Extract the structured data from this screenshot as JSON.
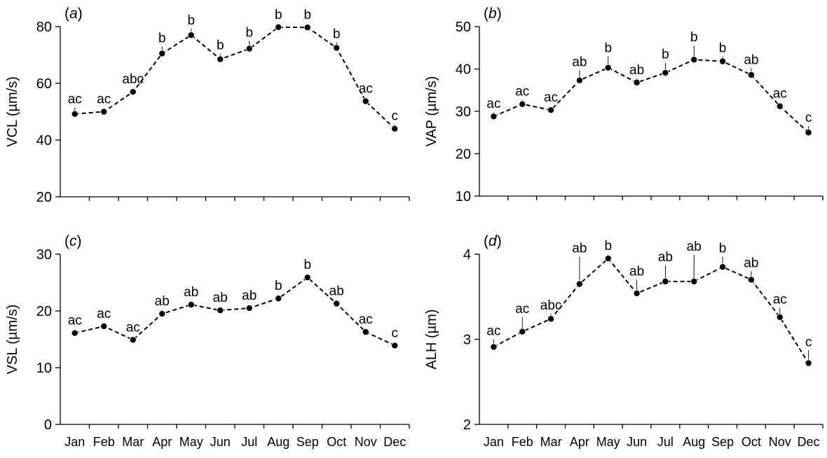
{
  "chart_data": [
    {
      "type": "line",
      "panel_label": "a",
      "ylabel": "VCL (µm/s)",
      "xlabel": "",
      "ylim": [
        20,
        80
      ],
      "yticks": [
        20,
        40,
        60,
        80
      ],
      "categories": [
        "Jan",
        "Feb",
        "Mar",
        "Apr",
        "May",
        "Jun",
        "Jul",
        "Aug",
        "Sep",
        "Oct",
        "Nov",
        "Dec"
      ],
      "series": [
        {
          "values": [
            49.2,
            50.0,
            57.0,
            70.5,
            77.0,
            68.5,
            72.2,
            79.8,
            79.7,
            72.5,
            53.7,
            44.0
          ],
          "error_upper": [
            51.5,
            50.5,
            57.5,
            73.0,
            79.3,
            70.5,
            75.0,
            80.5,
            80.5,
            74.5,
            54.7,
            45.5
          ],
          "annotations": [
            "ac",
            "ac",
            "abc",
            "b",
            "b",
            "b",
            "b",
            "b",
            "b",
            "b",
            "ac",
            "c"
          ]
        }
      ],
      "show_xticklabels": false
    },
    {
      "type": "line",
      "panel_label": "b",
      "ylabel": "VAP (µm/s)",
      "xlabel": "",
      "ylim": [
        10,
        50
      ],
      "yticks": [
        10,
        20,
        30,
        40,
        50
      ],
      "categories": [
        "Jan",
        "Feb",
        "Mar",
        "Apr",
        "May",
        "Jun",
        "Jul",
        "Aug",
        "Sep",
        "Oct",
        "Nov",
        "Dec"
      ],
      "series": [
        {
          "values": [
            28.8,
            31.7,
            30.3,
            37.3,
            40.3,
            36.8,
            39.1,
            42.2,
            41.8,
            38.6,
            31.2,
            25.0
          ],
          "error_upper": [
            29.8,
            32.7,
            30.6,
            39.7,
            43.0,
            37.8,
            41.5,
            45.5,
            43.0,
            40.2,
            31.8,
            26.5
          ],
          "annotations": [
            "ac",
            "ac",
            "ac",
            "ab",
            "b",
            "ab",
            "b",
            "b",
            "b",
            "ab",
            "ac",
            "c"
          ]
        }
      ],
      "show_xticklabels": false
    },
    {
      "type": "line",
      "panel_label": "c",
      "ylabel": "VSL (µm/s)",
      "xlabel": "",
      "ylim": [
        0,
        30
      ],
      "yticks": [
        0,
        10,
        20,
        30
      ],
      "categories": [
        "Jan",
        "Feb",
        "Mar",
        "Apr",
        "May",
        "Jun",
        "Jul",
        "Aug",
        "Sep",
        "Oct",
        "Nov",
        "Dec"
      ],
      "series": [
        {
          "values": [
            16.1,
            17.3,
            14.9,
            19.5,
            21.1,
            20.1,
            20.5,
            22.2,
            25.9,
            21.3,
            16.3,
            13.9
          ],
          "error_upper": [
            16.5,
            17.8,
            15.3,
            20.2,
            21.7,
            20.6,
            21.0,
            22.6,
            26.2,
            21.8,
            16.7,
            14.3
          ],
          "annotations": [
            "ac",
            "ac",
            "ac",
            "ab",
            "ab",
            "ab",
            "ab",
            "b",
            "b",
            "ab",
            "ac",
            "c"
          ]
        }
      ],
      "show_xticklabels": true
    },
    {
      "type": "line",
      "panel_label": "d",
      "ylabel": "ALH (µm)",
      "xlabel": "",
      "ylim": [
        2,
        4
      ],
      "yticks": [
        2,
        3,
        4
      ],
      "categories": [
        "Jan",
        "Feb",
        "Mar",
        "Apr",
        "May",
        "Jun",
        "Jul",
        "Aug",
        "Sep",
        "Oct",
        "Nov",
        "Dec"
      ],
      "series": [
        {
          "values": [
            2.91,
            3.09,
            3.24,
            3.65,
            3.95,
            3.54,
            3.68,
            3.68,
            3.85,
            3.7,
            3.26,
            2.72
          ],
          "error_upper": [
            3.0,
            3.26,
            3.3,
            3.97,
            3.98,
            3.7,
            3.87,
            3.99,
            3.97,
            3.8,
            3.37,
            2.87
          ],
          "annotations": [
            "ac",
            "ac",
            "abc",
            "ab",
            "b",
            "ab",
            "ab",
            "ab",
            "b",
            "ab",
            "ac",
            "c"
          ]
        }
      ],
      "show_xticklabels": true
    }
  ]
}
